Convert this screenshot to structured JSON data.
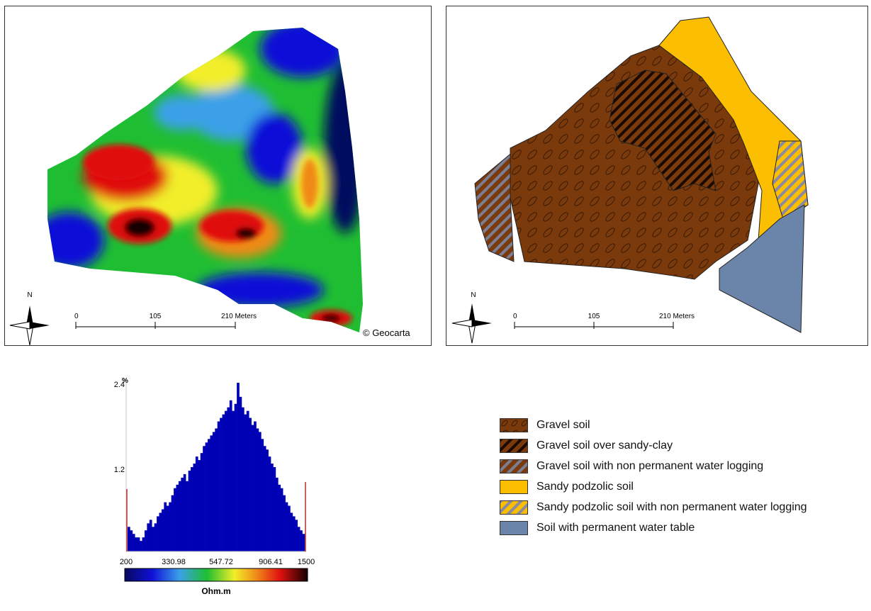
{
  "resistivity_map": {
    "north_label": "N",
    "scale_ticks": [
      "0",
      "105",
      "210 Meters"
    ],
    "copyright": "© Geocarta",
    "colors": {
      "navy": "#06095e",
      "blue": "#1010d8",
      "light_blue": "#3aa0e8",
      "green": "#1fbe32",
      "yellow": "#f2ee2a",
      "orange": "#f08a18",
      "red": "#e01010",
      "black": "#140000"
    }
  },
  "soil_map": {
    "north_label": "N",
    "scale_ticks": [
      "0",
      "105",
      "210 Meters"
    ]
  },
  "histogram": {
    "y_unit": "%",
    "y_ticks": [
      "2.4",
      "1.2"
    ],
    "x_ticks": [
      "200",
      "330.98",
      "547.72",
      "906.41",
      "1500"
    ],
    "xlabel": "Ohm.m",
    "bar_color": "#0000b4",
    "marker_color": "#b4302a"
  },
  "chart_data": {
    "type": "bar",
    "xlabel": "Ohm.m",
    "ylabel": "%",
    "xlim": [
      200,
      1500
    ],
    "ylim": [
      0,
      2.4
    ],
    "values": [
      0.35,
      0.3,
      0.25,
      0.2,
      0.2,
      0.15,
      0.2,
      0.3,
      0.4,
      0.45,
      0.35,
      0.4,
      0.5,
      0.55,
      0.6,
      0.7,
      0.65,
      0.7,
      0.8,
      0.9,
      0.95,
      1.0,
      1.05,
      1.1,
      1.0,
      1.15,
      1.2,
      1.25,
      1.35,
      1.3,
      1.4,
      1.5,
      1.55,
      1.6,
      1.65,
      1.7,
      1.75,
      1.85,
      1.9,
      1.95,
      2.0,
      2.05,
      2.15,
      2.0,
      2.1,
      2.4,
      2.2,
      2.05,
      1.95,
      2.0,
      1.9,
      1.8,
      1.85,
      1.75,
      1.7,
      1.6,
      1.5,
      1.45,
      1.35,
      1.25,
      1.2,
      1.05,
      0.95,
      0.9,
      0.8,
      0.7,
      0.65,
      0.55,
      0.5,
      0.45,
      0.35,
      0.3,
      0.25
    ]
  },
  "legend": {
    "items": [
      {
        "label": "Gravel soil",
        "pattern": "ovals"
      },
      {
        "label": "Gravel soil over sandy-clay",
        "pattern": "dark-hatch"
      },
      {
        "label": "Gravel soil with non permanent water logging",
        "pattern": "grey-hatch"
      },
      {
        "label": "Sandy podzolic soil",
        "pattern": "solid-yellow"
      },
      {
        "label": "Sandy podzolic soil with non permanent water logging",
        "pattern": "yellow-hatch"
      },
      {
        "label": "Soil with permanent water table",
        "pattern": "solid-blue"
      }
    ],
    "colors": {
      "gravel": "#7b3a0c",
      "yellow": "#fcbe00",
      "blue": "#6b84aa"
    }
  }
}
